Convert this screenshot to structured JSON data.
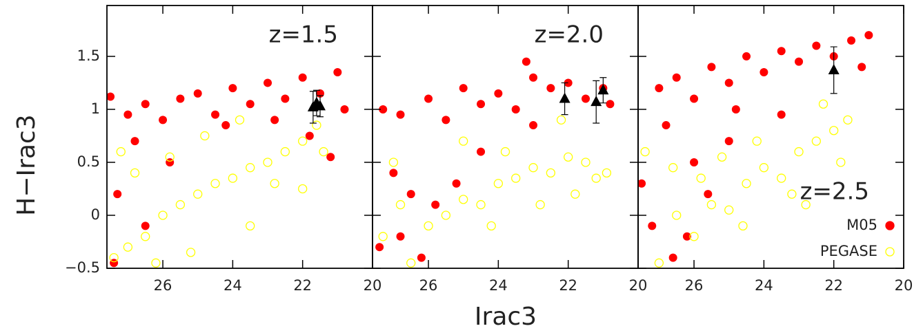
{
  "chart_data": [
    {
      "type": "scatter",
      "ylabel": "H−Irac3",
      "xlim": [
        27.6,
        20
      ],
      "xticks": [
        26,
        24,
        22,
        20
      ],
      "ylim": [
        -0.5,
        1.98
      ],
      "yticks": [
        {
          "value": -0.5,
          "label": "−0.5"
        },
        0,
        0.5,
        1,
        1.5
      ],
      "annotation": "z=1.5",
      "series": [
        {
          "color": "#ff0000",
          "marker": "filled-circle",
          "x": [
            27.5,
            27.0,
            26.5,
            26.0,
            25.5,
            25.0,
            24.5,
            24.0,
            23.5,
            23.0,
            22.5,
            22.0,
            21.5,
            21.0,
            20.8,
            26.8,
            25.8,
            27.3,
            26.5,
            27.4,
            24.2,
            22.8,
            21.8,
            21.2
          ],
          "values": [
            1.12,
            0.95,
            1.05,
            0.9,
            1.1,
            1.15,
            0.95,
            1.2,
            1.05,
            1.25,
            1.1,
            1.3,
            1.15,
            1.35,
            1.0,
            0.7,
            0.5,
            0.2,
            -0.1,
            -0.45,
            0.85,
            0.9,
            0.75,
            0.55
          ]
        },
        {
          "color": "#ffff00",
          "marker": "open-circle",
          "x": [
            27.4,
            27.0,
            26.5,
            26.0,
            25.5,
            25.0,
            24.5,
            24.0,
            23.5,
            23.0,
            22.5,
            22.0,
            21.6,
            21.4,
            26.8,
            25.8,
            24.8,
            23.8,
            22.8,
            22.0,
            27.2,
            26.2,
            25.2,
            23.5
          ],
          "values": [
            -0.4,
            -0.3,
            -0.2,
            0.0,
            0.1,
            0.2,
            0.3,
            0.35,
            0.45,
            0.5,
            0.6,
            0.7,
            0.85,
            0.6,
            0.4,
            0.55,
            0.75,
            0.9,
            0.3,
            0.25,
            0.6,
            -0.45,
            -0.35,
            -0.1
          ]
        },
        {
          "color": "#000000",
          "marker": "triangle",
          "x": [
            21.7,
            21.6,
            21.5
          ],
          "values": [
            1.02,
            1.06,
            1.03
          ],
          "errors": [
            0.15,
            0.12,
            0.1
          ]
        }
      ]
    },
    {
      "type": "scatter",
      "xlabel": "Irac3",
      "xlim": [
        27.6,
        20
      ],
      "xticks": [
        26,
        24,
        22,
        20
      ],
      "annotation": "z=2.0",
      "series": [
        {
          "color": "#ff0000",
          "marker": "filled-circle",
          "x": [
            27.3,
            26.8,
            26.0,
            25.5,
            25.0,
            24.5,
            24.0,
            23.5,
            23.0,
            22.5,
            22.0,
            21.5,
            21.0,
            20.8,
            23.2,
            27.4,
            26.8,
            26.2,
            25.8,
            25.2,
            26.5,
            27.0,
            24.5,
            23.0
          ],
          "values": [
            1.0,
            0.95,
            1.1,
            0.9,
            1.2,
            1.05,
            1.15,
            1.0,
            1.3,
            1.2,
            1.25,
            1.1,
            1.2,
            1.05,
            1.45,
            -0.3,
            -0.2,
            -0.4,
            0.1,
            0.3,
            0.2,
            0.4,
            0.6,
            0.85
          ]
        },
        {
          "color": "#ffff00",
          "marker": "open-circle",
          "x": [
            27.3,
            26.8,
            26.0,
            25.5,
            25.0,
            24.5,
            24.0,
            23.5,
            23.0,
            22.5,
            22.0,
            21.5,
            21.2,
            22.8,
            24.2,
            23.8,
            26.5,
            27.0,
            25.0,
            22.2,
            21.8,
            20.9
          ],
          "values": [
            -0.2,
            0.1,
            -0.1,
            0.0,
            0.15,
            0.1,
            0.3,
            0.35,
            0.45,
            0.4,
            0.55,
            0.5,
            0.35,
            0.1,
            -0.1,
            0.6,
            -0.45,
            0.5,
            0.7,
            0.9,
            0.2,
            0.4
          ]
        },
        {
          "color": "#000000",
          "marker": "triangle",
          "x": [
            22.1,
            21.2,
            21.0
          ],
          "values": [
            1.1,
            1.07,
            1.18
          ],
          "errors": [
            0.15,
            0.2,
            0.12
          ]
        }
      ]
    },
    {
      "type": "scatter",
      "xlim": [
        27.6,
        20
      ],
      "xticks": [
        26,
        24,
        22,
        20
      ],
      "annotation": "z=2.5",
      "legend": "lower right",
      "series": [
        {
          "name": "M05",
          "color": "#ff0000",
          "marker": "filled-circle",
          "x": [
            27.0,
            26.5,
            26.0,
            25.5,
            25.0,
            24.5,
            24.0,
            23.5,
            23.0,
            22.5,
            22.0,
            21.5,
            21.0,
            21.2,
            24.8,
            26.8,
            27.5,
            27.2,
            26.6,
            26.2,
            25.6,
            26.0,
            25.0,
            23.5
          ],
          "values": [
            1.2,
            1.3,
            1.1,
            1.4,
            1.25,
            1.5,
            1.35,
            1.55,
            1.45,
            1.6,
            1.5,
            1.65,
            1.7,
            1.4,
            1.0,
            0.85,
            0.3,
            -0.1,
            -0.4,
            -0.2,
            0.2,
            0.5,
            0.7,
            0.95
          ]
        },
        {
          "name": "PEGASE",
          "color": "#ffff00",
          "marker": "open-circle",
          "x": [
            27.4,
            27.0,
            26.5,
            26.0,
            25.5,
            25.0,
            24.5,
            24.0,
            23.5,
            23.0,
            22.5,
            22.0,
            21.6,
            22.3,
            23.2,
            24.2,
            25.2,
            26.6,
            22.8,
            21.8,
            25.8,
            24.6
          ],
          "values": [
            0.6,
            -0.45,
            0.0,
            -0.2,
            0.1,
            0.05,
            0.3,
            0.45,
            0.35,
            0.6,
            0.7,
            0.8,
            0.9,
            1.05,
            0.2,
            0.7,
            0.55,
            0.45,
            0.1,
            0.5,
            0.35,
            -0.1
          ]
        },
        {
          "color": "#000000",
          "marker": "triangle",
          "x": [
            22.0
          ],
          "values": [
            1.37
          ],
          "errors": [
            0.22
          ]
        }
      ]
    }
  ]
}
